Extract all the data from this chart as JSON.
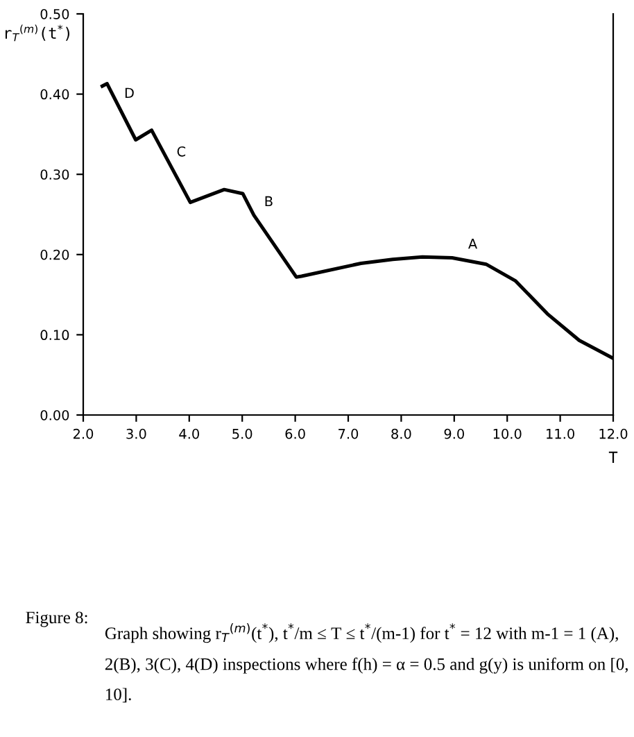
{
  "chart_data": {
    "type": "line",
    "xlabel": "T",
    "ylabel": "r$_{T}$$^{(m)}$(t$^{*}$)",
    "x": [
      2.36,
      2.45,
      2.99,
      3.29,
      4.02,
      4.66,
      5.01,
      5.22,
      6.02,
      6.12,
      7.24,
      7.84,
      8.4,
      8.96,
      9.6,
      10.16,
      10.76,
      11.36,
      11.99
    ],
    "series": [
      {
        "color": "#000000",
        "values": [
          0.41,
          0.413,
          0.343,
          0.355,
          0.265,
          0.281,
          0.276,
          0.249,
          0.172,
          0.173,
          0.189,
          0.194,
          0.197,
          0.196,
          0.188,
          0.167,
          0.126,
          0.093,
          0.071
        ]
      }
    ],
    "xlim": [
      2.0,
      12.0
    ],
    "ylim": [
      0.0,
      0.5
    ],
    "xticks": [
      {
        "value": 2,
        "label": "2.0"
      },
      {
        "value": 3,
        "label": "3.0"
      },
      {
        "value": 4,
        "label": "4.0"
      },
      {
        "value": 5,
        "label": "5.0"
      },
      {
        "value": 6,
        "label": "6.0"
      },
      {
        "value": 7,
        "label": "7.0"
      },
      {
        "value": 8,
        "label": "8.0"
      },
      {
        "value": 9,
        "label": "9.0"
      },
      {
        "value": 10,
        "label": "10.0"
      },
      {
        "value": 11,
        "label": "11.0"
      },
      {
        "value": 12,
        "label": "12.0"
      }
    ],
    "yticks": [
      {
        "value": 0,
        "label": "0.00"
      },
      {
        "value": 0.1,
        "label": "0.10"
      },
      {
        "value": 0.2,
        "label": "0.20"
      },
      {
        "value": 0.3,
        "label": "0.30"
      },
      {
        "value": 0.4,
        "label": "0.40"
      },
      {
        "value": 0.5,
        "label": "0.50"
      }
    ],
    "grid": false,
    "legend": false,
    "marker": "none",
    "line_style": "solid",
    "annotations": [
      "D",
      "C",
      "B",
      "A",
      "Figure 8:",
      "Graph showing r$_{T}$$^{(m)}$(t$^{*}$), t$^{*}$/m ≤ T ≤ t$^{*}$/(m-1) for t$^{*}$ = 12 with m-1 = 1 (A), 2(B), 3(C), 4(D) inspections where f(h) = α = 0.5 and g(y) is uniform on [0, 10]."
    ]
  }
}
